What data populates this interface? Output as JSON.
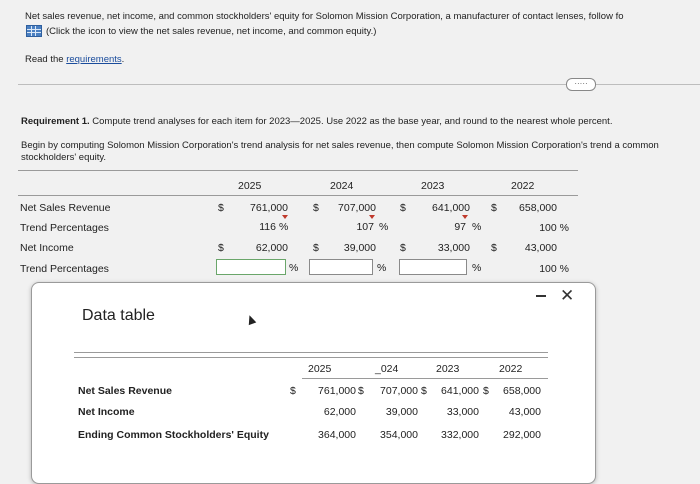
{
  "intro": {
    "line1": "Net sales revenue, net income, and common stockholders' equity for Solomon Mission Corporation, a manufacturer of contact lenses, follow fo",
    "line2": "(Click the icon to view the net sales revenue, net income, and common equity.)",
    "read_prefix": "Read the ",
    "read_link": "requirements",
    "read_suffix": ".",
    "pill": "·····"
  },
  "requirement": {
    "bold": "Requirement 1.",
    "text": " Compute trend analyses for each item for 2023—2025. Use 2022 as the base year, and round to the nearest whole percent.",
    "begin": "Begin by computing Solomon Mission Corporation's trend analysis for net sales revenue, then compute Solomon Mission Corporation's trend a common stockholders' equity."
  },
  "trend_table": {
    "years": [
      "2025",
      "2024",
      "2023",
      "2022"
    ],
    "dollar": "$",
    "percent": "%",
    "rows": {
      "net_sales_label": "Net Sales Revenue",
      "net_sales": [
        "761,000",
        "707,000",
        "641,000",
        "658,000"
      ],
      "trend1_label": "Trend Percentages",
      "trend1": [
        "116",
        "107",
        "97",
        "100 %"
      ],
      "net_income_label": "Net Income",
      "net_income": [
        "62,000",
        "39,000",
        "33,000",
        "43,000"
      ],
      "trend2_label": "Trend Percentages",
      "trend2": [
        "",
        "",
        "",
        "100 %"
      ]
    }
  },
  "modal": {
    "title": "Data table",
    "close": "✕",
    "years": [
      "2025",
      "2024",
      "2023",
      "2022"
    ],
    "years_shown": [
      "2025",
      "_024",
      "2023",
      "2022"
    ],
    "dollar": "$",
    "rows": [
      {
        "label": "Net Sales Revenue",
        "values": [
          "761,000",
          "707,000",
          "641,000",
          "658,000"
        ]
      },
      {
        "label": "Net Income",
        "values": [
          "62,000",
          "39,000",
          "33,000",
          "43,000"
        ]
      },
      {
        "label": "Ending Common Stockholders' Equity",
        "values": [
          "364,000",
          "354,000",
          "332,000",
          "292,000"
        ]
      }
    ]
  }
}
